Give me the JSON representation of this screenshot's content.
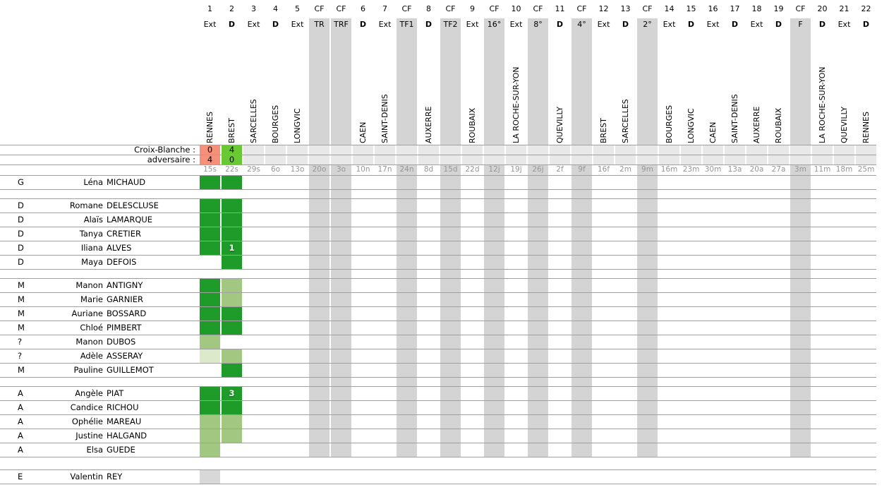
{
  "table": {
    "home_team_label": "Croix-Blanche :",
    "opponent_label": "adversaire :",
    "colors": {
      "win_green": "#6ac832",
      "loss_salmon": "#f5917a",
      "played_full_green": "#1e9b28",
      "played_partial_green": "#a2c781",
      "played_brief_green": "#dde9cb",
      "present_gray": "#d8d8d8",
      "cf_column_gray": "#d4d4d4",
      "score_filler_gray": "#e8e8e8",
      "grid_line_gray": "#a0a0a0",
      "date_text_gray": "#969696"
    },
    "columns": [
      {
        "num": "1",
        "type": "Ext",
        "opponent": "RENNES",
        "date": "15s",
        "cf": false
      },
      {
        "num": "2",
        "type": "D",
        "opponent": "BREST",
        "date": "22s",
        "cf": false
      },
      {
        "num": "3",
        "type": "Ext",
        "opponent": "SARCELLES",
        "date": "29s",
        "cf": false
      },
      {
        "num": "4",
        "type": "D",
        "opponent": "BOURGES",
        "date": "6o",
        "cf": false
      },
      {
        "num": "5",
        "type": "Ext",
        "opponent": "LONGVIC",
        "date": "13o",
        "cf": false
      },
      {
        "num": "CF",
        "type": "TR",
        "opponent": "",
        "date": "20o",
        "cf": true
      },
      {
        "num": "CF",
        "type": "TRF",
        "opponent": "",
        "date": "3o",
        "cf": true
      },
      {
        "num": "6",
        "type": "D",
        "opponent": "CAEN",
        "date": "10n",
        "cf": false
      },
      {
        "num": "7",
        "type": "Ext",
        "opponent": "SAINT-DENIS",
        "date": "17n",
        "cf": false
      },
      {
        "num": "CF",
        "type": "TF1",
        "opponent": "",
        "date": "24n",
        "cf": true
      },
      {
        "num": "8",
        "type": "D",
        "opponent": "AUXERRE",
        "date": "8d",
        "cf": false
      },
      {
        "num": "CF",
        "type": "TF2",
        "opponent": "",
        "date": "15d",
        "cf": true
      },
      {
        "num": "9",
        "type": "Ext",
        "opponent": "ROUBAIX",
        "date": "22d",
        "cf": false
      },
      {
        "num": "CF",
        "type": "16°",
        "opponent": "",
        "date": "12j",
        "cf": true
      },
      {
        "num": "10",
        "type": "Ext",
        "opponent": "LA ROCHE-SUR-YON",
        "date": "19j",
        "cf": false
      },
      {
        "num": "CF",
        "type": "8°",
        "opponent": "",
        "date": "26j",
        "cf": true
      },
      {
        "num": "11",
        "type": "D",
        "opponent": "QUEVILLY",
        "date": "2f",
        "cf": false
      },
      {
        "num": "CF",
        "type": "4°",
        "opponent": "",
        "date": "9f",
        "cf": true
      },
      {
        "num": "12",
        "type": "Ext",
        "opponent": "BREST",
        "date": "16f",
        "cf": false
      },
      {
        "num": "13",
        "type": "D",
        "opponent": "SARCELLES",
        "date": "2m",
        "cf": false
      },
      {
        "num": "CF",
        "type": "2°",
        "opponent": "",
        "date": "9m",
        "cf": true
      },
      {
        "num": "14",
        "type": "Ext",
        "opponent": "BOURGES",
        "date": "16m",
        "cf": false
      },
      {
        "num": "15",
        "type": "D",
        "opponent": "LONGVIC",
        "date": "23m",
        "cf": false
      },
      {
        "num": "16",
        "type": "Ext",
        "opponent": "CAEN",
        "date": "30m",
        "cf": false
      },
      {
        "num": "17",
        "type": "D",
        "opponent": "SAINT-DENIS",
        "date": "13a",
        "cf": false
      },
      {
        "num": "18",
        "type": "Ext",
        "opponent": "AUXERRE",
        "date": "20a",
        "cf": false
      },
      {
        "num": "19",
        "type": "D",
        "opponent": "ROUBAIX",
        "date": "27a",
        "cf": false
      },
      {
        "num": "CF",
        "type": "F",
        "opponent": "",
        "date": "3m",
        "cf": true
      },
      {
        "num": "20",
        "type": "D",
        "opponent": "LA ROCHE-SUR-YON",
        "date": "11m",
        "cf": false
      },
      {
        "num": "21",
        "type": "Ext",
        "opponent": "QUEVILLY",
        "date": "18m",
        "cf": false
      },
      {
        "num": "22",
        "type": "D",
        "opponent": "RENNES",
        "date": "25m",
        "cf": false
      }
    ],
    "results": [
      {
        "col": 1,
        "home_goals": "0",
        "opp_goals": "4",
        "outcome": "loss"
      },
      {
        "col": 2,
        "home_goals": "4",
        "opp_goals": "0",
        "outcome": "win"
      }
    ],
    "groups": [
      {
        "players": [
          {
            "pos": "G",
            "first": "Léna",
            "last": "MICHAUD",
            "cells": [
              {
                "col": 1,
                "level": "full"
              },
              {
                "col": 2,
                "level": "full"
              }
            ]
          }
        ]
      },
      {
        "players": [
          {
            "pos": "D",
            "first": "Romane",
            "last": "DELESCLUSE",
            "cells": [
              {
                "col": 1,
                "level": "full"
              },
              {
                "col": 2,
                "level": "full"
              }
            ]
          },
          {
            "pos": "D",
            "first": "Alaïs",
            "last": "LAMARQUE",
            "cells": [
              {
                "col": 1,
                "level": "full"
              },
              {
                "col": 2,
                "level": "full"
              }
            ]
          },
          {
            "pos": "D",
            "first": "Tanya",
            "last": "CRETIER",
            "cells": [
              {
                "col": 1,
                "level": "full"
              },
              {
                "col": 2,
                "level": "full"
              }
            ]
          },
          {
            "pos": "D",
            "first": "Iliana",
            "last": "ALVES",
            "cells": [
              {
                "col": 1,
                "level": "full"
              },
              {
                "col": 2,
                "level": "full",
                "goals": "1"
              }
            ]
          },
          {
            "pos": "D",
            "first": "Maya",
            "last": "DEFOIS",
            "cells": [
              {
                "col": 2,
                "level": "full"
              }
            ]
          }
        ]
      },
      {
        "players": [
          {
            "pos": "M",
            "first": "Manon",
            "last": "ANTIGNY",
            "cells": [
              {
                "col": 1,
                "level": "full"
              },
              {
                "col": 2,
                "level": "mid"
              }
            ]
          },
          {
            "pos": "M",
            "first": "Marie",
            "last": "GARNIER",
            "cells": [
              {
                "col": 1,
                "level": "full"
              },
              {
                "col": 2,
                "level": "mid"
              }
            ]
          },
          {
            "pos": "M",
            "first": "Auriane",
            "last": "BOSSARD",
            "cells": [
              {
                "col": 1,
                "level": "full"
              },
              {
                "col": 2,
                "level": "full"
              }
            ]
          },
          {
            "pos": "M",
            "first": "Chloé",
            "last": "PIMBERT",
            "cells": [
              {
                "col": 1,
                "level": "full"
              },
              {
                "col": 2,
                "level": "full"
              }
            ]
          },
          {
            "pos": "?",
            "first": "Manon",
            "last": "DUBOS",
            "cells": [
              {
                "col": 1,
                "level": "mid"
              }
            ]
          },
          {
            "pos": "?",
            "first": "Adèle",
            "last": "ASSERAY",
            "cells": [
              {
                "col": 1,
                "level": "low"
              },
              {
                "col": 2,
                "level": "mid"
              }
            ]
          },
          {
            "pos": "M",
            "first": "Pauline",
            "last": "GUILLEMOT",
            "cells": [
              {
                "col": 2,
                "level": "full"
              }
            ]
          }
        ]
      },
      {
        "players": [
          {
            "pos": "A",
            "first": "Angèle",
            "last": "PIAT",
            "cells": [
              {
                "col": 1,
                "level": "full"
              },
              {
                "col": 2,
                "level": "full",
                "goals": "3"
              }
            ]
          },
          {
            "pos": "A",
            "first": "Candice",
            "last": "RICHOU",
            "cells": [
              {
                "col": 1,
                "level": "full"
              },
              {
                "col": 2,
                "level": "full"
              }
            ]
          },
          {
            "pos": "A",
            "first": "Ophélie",
            "last": "MAREAU",
            "cells": [
              {
                "col": 1,
                "level": "mid"
              },
              {
                "col": 2,
                "level": "mid"
              }
            ]
          },
          {
            "pos": "A",
            "first": "Justine",
            "last": "HALGAND",
            "cells": [
              {
                "col": 1,
                "level": "mid"
              },
              {
                "col": 2,
                "level": "mid"
              }
            ]
          },
          {
            "pos": "A",
            "first": "Elsa",
            "last": "GUEDE",
            "cells": [
              {
                "col": 1,
                "level": "mid"
              }
            ]
          }
        ]
      },
      {
        "players": [
          {
            "pos": "E",
            "first": "Valentin",
            "last": "REY",
            "cells": [
              {
                "col": 1,
                "level": "present"
              }
            ]
          }
        ]
      }
    ]
  }
}
